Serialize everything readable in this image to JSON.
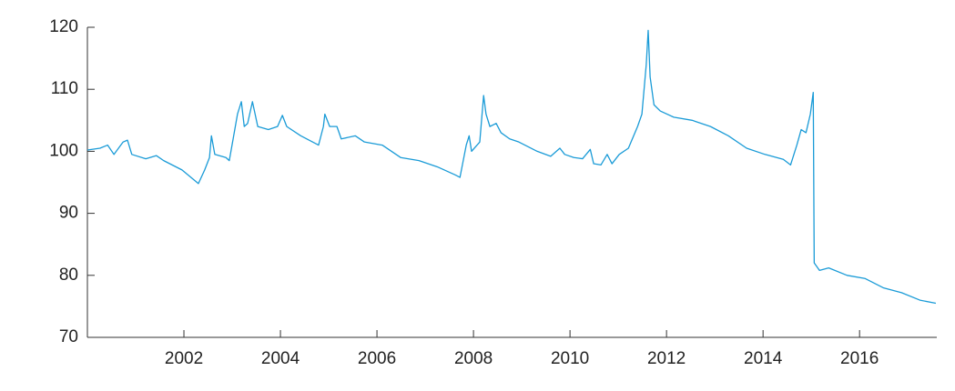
{
  "chart_data": {
    "type": "line",
    "color": "#1a9bd7",
    "x": [
      2000.0,
      2000.26,
      2000.42,
      2000.55,
      2000.74,
      2000.83,
      2000.92,
      2001.21,
      2001.43,
      2001.58,
      2001.96,
      2002.3,
      2002.43,
      2002.53,
      2002.57,
      2002.64,
      2002.87,
      2002.94,
      2003.02,
      2003.11,
      2003.19,
      2003.25,
      2003.32,
      2003.42,
      2003.53,
      2003.75,
      2003.94,
      2004.04,
      2004.13,
      2004.42,
      2004.79,
      2004.89,
      2004.92,
      2005.02,
      2005.17,
      2005.26,
      2005.55,
      2005.74,
      2006.11,
      2006.49,
      2006.87,
      2007.25,
      2007.62,
      2007.72,
      2007.85,
      2007.91,
      2007.96,
      2008.13,
      2008.21,
      2008.26,
      2008.34,
      2008.47,
      2008.57,
      2008.75,
      2008.94,
      2009.32,
      2009.6,
      2009.79,
      2009.89,
      2010.08,
      2010.26,
      2010.42,
      2010.49,
      2010.64,
      2010.77,
      2010.87,
      2011.02,
      2011.21,
      2011.4,
      2011.49,
      2011.58,
      2011.62,
      2011.66,
      2011.74,
      2011.87,
      2012.15,
      2012.53,
      2012.91,
      2013.28,
      2013.66,
      2014.04,
      2014.42,
      2014.57,
      2014.7,
      2014.79,
      2014.89,
      2014.98,
      2015.04,
      2015.06,
      2015.17,
      2015.36,
      2015.74,
      2016.11,
      2016.49,
      2016.87,
      2017.25,
      2017.58
    ],
    "values": [
      100.2,
      100.5,
      101,
      99.5,
      101.5,
      101.8,
      99.5,
      98.8,
      99.3,
      98.5,
      97,
      94.8,
      97,
      99,
      102.5,
      99.5,
      99,
      98.5,
      102,
      106,
      108,
      104,
      104.5,
      108,
      104,
      103.5,
      104,
      105.8,
      104,
      102.5,
      101,
      104,
      106,
      104,
      104,
      102,
      102.5,
      101.5,
      101,
      99,
      98.5,
      97.5,
      96.2,
      95.8,
      101,
      102.5,
      100,
      101.5,
      109,
      106,
      104,
      104.5,
      103,
      102,
      101.5,
      100,
      99.2,
      100.5,
      99.5,
      99,
      98.8,
      100.3,
      98,
      97.8,
      99.5,
      98,
      99.5,
      100.5,
      104,
      106,
      114,
      119.5,
      112,
      107.5,
      106.5,
      105.5,
      105,
      104,
      102.5,
      100.5,
      99.5,
      98.7,
      97.8,
      101,
      103.5,
      103,
      106,
      109.5,
      82,
      80.8,
      81.2,
      80,
      79.5,
      78,
      77.2,
      76,
      75.5
    ],
    "xlim": [
      2000,
      2017.6
    ],
    "xticks": [
      2002,
      2004,
      2006,
      2008,
      2010,
      2012,
      2014,
      2016
    ],
    "ylim": [
      70,
      120
    ],
    "yticks": [
      70,
      80,
      90,
      100,
      110,
      120
    ]
  }
}
